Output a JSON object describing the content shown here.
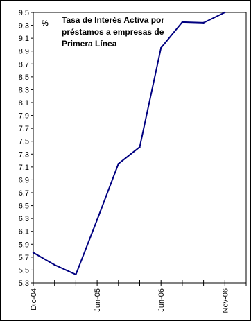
{
  "chart_data": {
    "type": "line",
    "title_lines": [
      "Tasa de Interés Activa por",
      "préstamos a empresas de",
      "Primera Línea"
    ],
    "unit": "%",
    "x_tick_labels": [
      "Dic-04",
      "Jun-05",
      "Jun-06",
      "Nov-06"
    ],
    "ylim": [
      5.3,
      9.5
    ],
    "y_ticks": [
      "5,3",
      "5,5",
      "5,7",
      "5,9",
      "6,1",
      "6,3",
      "6,5",
      "6,7",
      "6,9",
      "7,1",
      "7,3",
      "7,5",
      "7,7",
      "7,9",
      "8,1",
      "8,3",
      "8,5",
      "8,7",
      "8,9",
      "9,1",
      "9,3",
      "9,5"
    ],
    "x_slot_count": 10,
    "grid": false,
    "series": [
      {
        "color": "#000080",
        "points": [
          {
            "x": 0,
            "y": 5.77
          },
          {
            "x": 1,
            "y": 5.58
          },
          {
            "x": 2,
            "y": 5.43
          },
          {
            "x": 3,
            "y": 6.28
          },
          {
            "x": 4,
            "y": 7.15
          },
          {
            "x": 5,
            "y": 7.41
          },
          {
            "x": 6,
            "y": 8.95
          },
          {
            "x": 7,
            "y": 9.35
          },
          {
            "x": 8,
            "y": 9.34
          },
          {
            "x": 9,
            "y": 9.5
          }
        ]
      }
    ]
  }
}
